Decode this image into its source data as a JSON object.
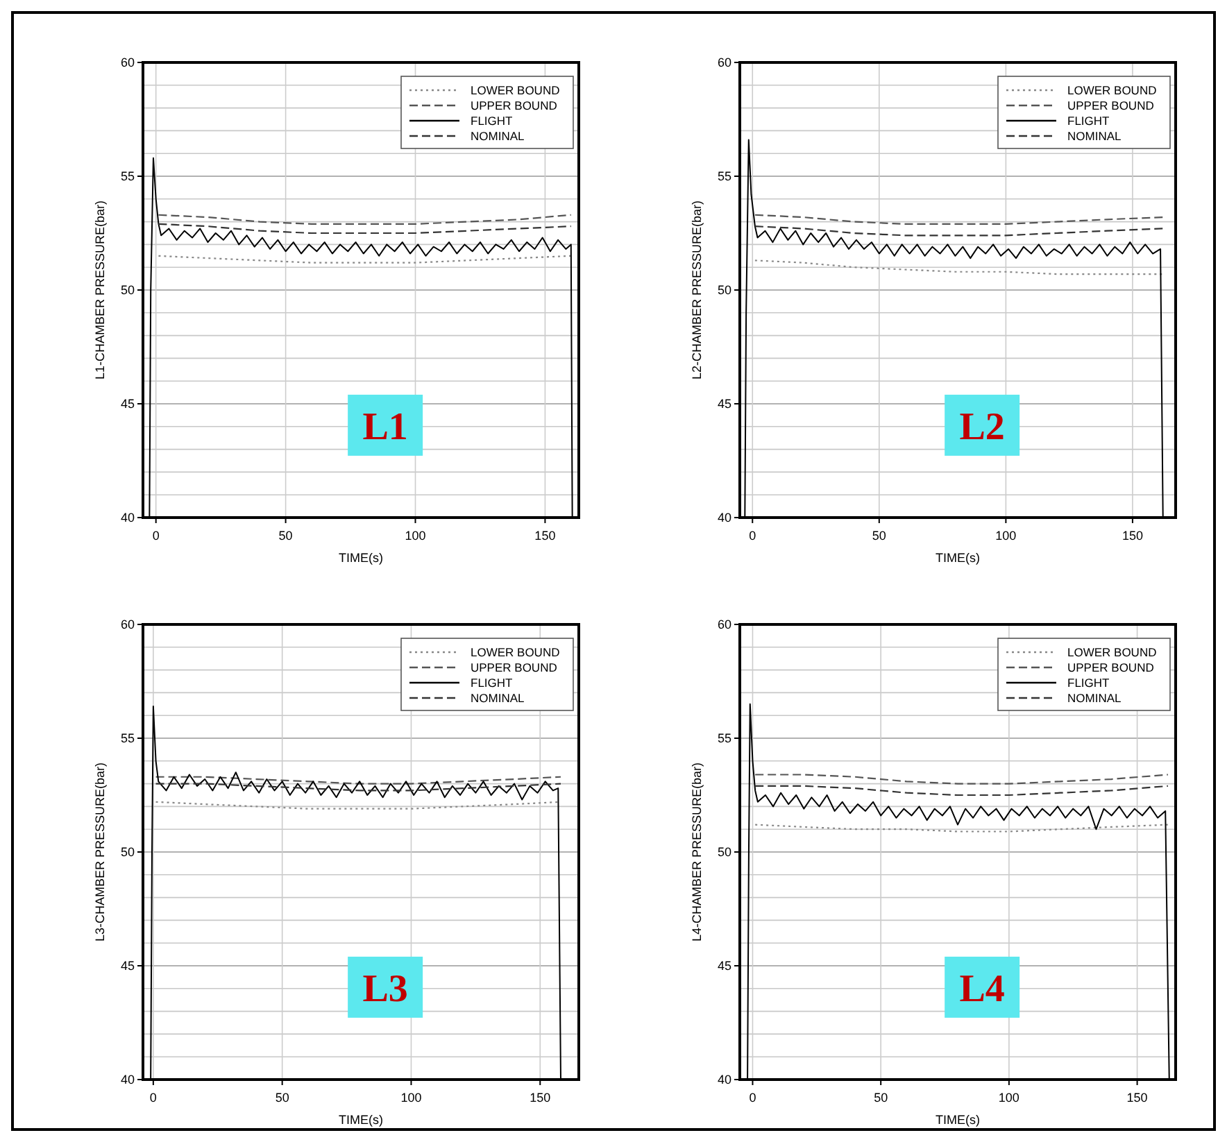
{
  "chart_data": [
    {
      "type": "line",
      "xlabel": "TIME(s)",
      "ylabel": "L1-CHAMBER PRESSURE(bar)",
      "annotations": [
        "L1"
      ],
      "xlim": [
        -5,
        163
      ],
      "xticks": [
        0,
        50,
        100,
        150
      ],
      "ylim": [
        40,
        60
      ],
      "yticks": [
        40,
        {
          "value": 41,
          "label": null
        },
        {
          "value": 42,
          "label": null
        },
        {
          "value": 43,
          "label": null
        },
        {
          "value": 44,
          "label": null
        },
        45,
        {
          "value": 46,
          "label": null
        },
        {
          "value": 47,
          "label": null
        },
        {
          "value": 48,
          "label": null
        },
        {
          "value": 49,
          "label": null
        },
        50,
        {
          "value": 51,
          "label": null
        },
        {
          "value": 52,
          "label": null
        },
        {
          "value": 53,
          "label": null
        },
        {
          "value": 54,
          "label": null
        },
        55,
        {
          "value": 56,
          "label": null
        },
        {
          "value": 57,
          "label": null
        },
        {
          "value": 58,
          "label": null
        },
        {
          "value": 59,
          "label": null
        },
        60
      ],
      "grid": true,
      "legend": "top right",
      "series": [
        {
          "name": "LOWER BOUND",
          "color": "#888888",
          "line_style": "dotted",
          "x": [
            1,
            20,
            40,
            60,
            80,
            100,
            120,
            140,
            160
          ],
          "values": [
            51.5,
            51.4,
            51.3,
            51.2,
            51.2,
            51.2,
            51.3,
            51.4,
            51.5
          ]
        },
        {
          "name": "UPPER BOUND",
          "color": "#555555",
          "line_style": "dashed",
          "x": [
            1,
            20,
            40,
            60,
            80,
            100,
            120,
            140,
            160
          ],
          "values": [
            53.3,
            53.2,
            53.0,
            52.9,
            52.9,
            52.9,
            53.0,
            53.1,
            53.3
          ]
        },
        {
          "name": "FLIGHT",
          "color": "#000000",
          "line_style": "solid",
          "x": [
            -2.5,
            -2,
            -1,
            0,
            1,
            2,
            5,
            8,
            11,
            14,
            17,
            20,
            23,
            26,
            29,
            32,
            35,
            38,
            41,
            44,
            47,
            50,
            53,
            56,
            59,
            62,
            65,
            68,
            71,
            74,
            77,
            80,
            83,
            86,
            89,
            92,
            95,
            98,
            101,
            104,
            107,
            110,
            113,
            116,
            119,
            122,
            125,
            128,
            131,
            134,
            137,
            140,
            143,
            146,
            149,
            152,
            155,
            158,
            160,
            160.5
          ],
          "values": [
            40,
            50,
            55.8,
            54,
            52.9,
            52.4,
            52.7,
            52.2,
            52.6,
            52.3,
            52.7,
            52.1,
            52.5,
            52.2,
            52.6,
            52.0,
            52.4,
            51.9,
            52.3,
            51.8,
            52.2,
            51.7,
            52.1,
            51.6,
            52.0,
            51.7,
            52.1,
            51.6,
            52.0,
            51.7,
            52.1,
            51.6,
            52.0,
            51.5,
            52.0,
            51.7,
            52.1,
            51.6,
            52.0,
            51.5,
            51.9,
            51.7,
            52.1,
            51.6,
            52.0,
            51.7,
            52.1,
            51.6,
            52.0,
            51.8,
            52.2,
            51.7,
            52.1,
            51.8,
            52.3,
            51.7,
            52.2,
            51.8,
            52.0,
            40
          ]
        },
        {
          "name": "NOMINAL",
          "color": "#333333",
          "line_style": "dashed",
          "x": [
            1,
            20,
            40,
            60,
            80,
            100,
            120,
            140,
            160
          ],
          "values": [
            52.9,
            52.8,
            52.6,
            52.5,
            52.5,
            52.5,
            52.6,
            52.7,
            52.8
          ]
        }
      ]
    },
    {
      "type": "line",
      "xlabel": "TIME(s)",
      "ylabel": "L2-CHAMBER PRESSURE(bar)",
      "annotations": [
        "L2"
      ],
      "xlim": [
        -5,
        167
      ],
      "xticks": [
        0,
        50,
        100,
        150
      ],
      "ylim": [
        40,
        60
      ],
      "yticks": [
        40,
        {
          "value": 41,
          "label": null
        },
        {
          "value": 42,
          "label": null
        },
        {
          "value": 43,
          "label": null
        },
        {
          "value": 44,
          "label": null
        },
        45,
        {
          "value": 46,
          "label": null
        },
        {
          "value": 47,
          "label": null
        },
        {
          "value": 48,
          "label": null
        },
        {
          "value": 49,
          "label": null
        },
        50,
        {
          "value": 51,
          "label": null
        },
        {
          "value": 52,
          "label": null
        },
        {
          "value": 53,
          "label": null
        },
        {
          "value": 54,
          "label": null
        },
        55,
        {
          "value": 56,
          "label": null
        },
        {
          "value": 57,
          "label": null
        },
        {
          "value": 58,
          "label": null
        },
        {
          "value": 59,
          "label": null
        },
        60
      ],
      "grid": true,
      "legend": "top right",
      "series": [
        {
          "name": "LOWER BOUND",
          "color": "#888888",
          "line_style": "dotted",
          "x": [
            1,
            20,
            40,
            60,
            80,
            100,
            120,
            140,
            162
          ],
          "values": [
            51.3,
            51.2,
            51.0,
            50.9,
            50.8,
            50.8,
            50.7,
            50.7,
            50.7
          ]
        },
        {
          "name": "UPPER BOUND",
          "color": "#555555",
          "line_style": "dashed",
          "x": [
            1,
            20,
            40,
            60,
            80,
            100,
            120,
            140,
            162
          ],
          "values": [
            53.3,
            53.2,
            53.0,
            52.9,
            52.9,
            52.9,
            53.0,
            53.1,
            53.2
          ]
        },
        {
          "name": "FLIGHT",
          "color": "#000000",
          "line_style": "solid",
          "x": [
            -3,
            -2.5,
            -1.5,
            -0.5,
            1,
            2,
            5,
            8,
            11,
            14,
            17,
            20,
            23,
            26,
            29,
            32,
            35,
            38,
            41,
            44,
            47,
            50,
            53,
            56,
            59,
            62,
            65,
            68,
            71,
            74,
            77,
            80,
            83,
            86,
            89,
            92,
            95,
            98,
            101,
            104,
            107,
            110,
            113,
            116,
            119,
            122,
            125,
            128,
            131,
            134,
            137,
            140,
            143,
            146,
            149,
            152,
            155,
            158,
            161,
            162
          ],
          "values": [
            40,
            49,
            56.6,
            54.2,
            52.8,
            52.3,
            52.6,
            52.1,
            52.7,
            52.2,
            52.6,
            52.0,
            52.5,
            52.1,
            52.5,
            51.9,
            52.3,
            51.8,
            52.2,
            51.8,
            52.1,
            51.6,
            52.0,
            51.5,
            52.0,
            51.6,
            52.0,
            51.5,
            51.9,
            51.6,
            52.0,
            51.5,
            51.9,
            51.4,
            51.9,
            51.6,
            52.0,
            51.5,
            51.8,
            51.4,
            51.9,
            51.6,
            52.0,
            51.5,
            51.8,
            51.6,
            52.0,
            51.5,
            51.9,
            51.6,
            52.0,
            51.5,
            51.9,
            51.6,
            52.1,
            51.6,
            52.0,
            51.6,
            51.8,
            40
          ]
        },
        {
          "name": "NOMINAL",
          "color": "#333333",
          "line_style": "dashed",
          "x": [
            1,
            20,
            40,
            60,
            80,
            100,
            120,
            140,
            162
          ],
          "values": [
            52.8,
            52.7,
            52.5,
            52.4,
            52.4,
            52.4,
            52.5,
            52.6,
            52.7
          ]
        }
      ]
    },
    {
      "type": "line",
      "xlabel": "TIME(s)",
      "ylabel": "L3-CHAMBER PRESSURE(bar)",
      "annotations": [
        "L3"
      ],
      "xlim": [
        -4,
        165
      ],
      "xticks": [
        0,
        50,
        100,
        150
      ],
      "ylim": [
        40,
        60
      ],
      "yticks": [
        40,
        {
          "value": 41,
          "label": null
        },
        {
          "value": 42,
          "label": null
        },
        {
          "value": 43,
          "label": null
        },
        {
          "value": 44,
          "label": null
        },
        45,
        {
          "value": 46,
          "label": null
        },
        {
          "value": 47,
          "label": null
        },
        {
          "value": 48,
          "label": null
        },
        {
          "value": 49,
          "label": null
        },
        50,
        {
          "value": 51,
          "label": null
        },
        {
          "value": 52,
          "label": null
        },
        {
          "value": 53,
          "label": null
        },
        {
          "value": 54,
          "label": null
        },
        55,
        {
          "value": 56,
          "label": null
        },
        {
          "value": 57,
          "label": null
        },
        {
          "value": 58,
          "label": null
        },
        {
          "value": 59,
          "label": null
        },
        60
      ],
      "grid": true,
      "legend": "top right",
      "series": [
        {
          "name": "LOWER BOUND",
          "color": "#888888",
          "line_style": "dotted",
          "x": [
            1,
            20,
            40,
            60,
            80,
            100,
            120,
            140,
            158
          ],
          "values": [
            52.2,
            52.1,
            52.0,
            51.9,
            51.9,
            51.9,
            52.0,
            52.1,
            52.2
          ]
        },
        {
          "name": "UPPER BOUND",
          "color": "#555555",
          "line_style": "dashed",
          "x": [
            1,
            20,
            40,
            60,
            80,
            100,
            120,
            140,
            158
          ],
          "values": [
            53.3,
            53.3,
            53.2,
            53.1,
            53.0,
            53.0,
            53.1,
            53.2,
            53.3
          ]
        },
        {
          "name": "FLIGHT",
          "color": "#000000",
          "line_style": "solid",
          "x": [
            -1,
            -0.5,
            0,
            1,
            2,
            5,
            8,
            11,
            14,
            17,
            20,
            23,
            26,
            29,
            32,
            35,
            38,
            41,
            44,
            47,
            50,
            53,
            56,
            59,
            62,
            65,
            68,
            71,
            74,
            77,
            80,
            83,
            86,
            89,
            92,
            95,
            98,
            101,
            104,
            107,
            110,
            113,
            116,
            119,
            122,
            125,
            128,
            131,
            134,
            137,
            140,
            143,
            146,
            149,
            152,
            155,
            157,
            158
          ],
          "values": [
            40,
            50,
            56.4,
            54,
            53.1,
            52.7,
            53.3,
            52.8,
            53.4,
            52.9,
            53.2,
            52.7,
            53.3,
            52.8,
            53.5,
            52.7,
            53.1,
            52.6,
            53.2,
            52.7,
            53.1,
            52.5,
            53.0,
            52.6,
            53.1,
            52.5,
            52.9,
            52.4,
            53.0,
            52.6,
            53.1,
            52.5,
            52.9,
            52.4,
            53.0,
            52.6,
            53.1,
            52.5,
            53.0,
            52.6,
            53.1,
            52.4,
            52.9,
            52.5,
            53.0,
            52.6,
            53.1,
            52.5,
            52.9,
            52.6,
            53.0,
            52.3,
            52.9,
            52.6,
            53.1,
            52.7,
            52.8,
            40
          ]
        },
        {
          "name": "NOMINAL",
          "color": "#333333",
          "line_style": "dashed",
          "x": [
            1,
            20,
            40,
            60,
            80,
            100,
            120,
            140,
            158
          ],
          "values": [
            53.0,
            53.0,
            52.9,
            52.8,
            52.7,
            52.7,
            52.8,
            52.9,
            53.0
          ]
        }
      ]
    },
    {
      "type": "line",
      "xlabel": "TIME(s)",
      "ylabel": "L4-CHAMBER PRESSURE(bar)",
      "annotations": [
        "L4"
      ],
      "xlim": [
        -5,
        165
      ],
      "xticks": [
        0,
        50,
        100,
        150
      ],
      "ylim": [
        40,
        60
      ],
      "yticks": [
        40,
        {
          "value": 41,
          "label": null
        },
        {
          "value": 42,
          "label": null
        },
        {
          "value": 43,
          "label": null
        },
        {
          "value": 44,
          "label": null
        },
        45,
        {
          "value": 46,
          "label": null
        },
        {
          "value": 47,
          "label": null
        },
        {
          "value": 48,
          "label": null
        },
        {
          "value": 49,
          "label": null
        },
        50,
        {
          "value": 51,
          "label": null
        },
        {
          "value": 52,
          "label": null
        },
        {
          "value": 53,
          "label": null
        },
        {
          "value": 54,
          "label": null
        },
        55,
        {
          "value": 56,
          "label": null
        },
        {
          "value": 57,
          "label": null
        },
        {
          "value": 58,
          "label": null
        },
        {
          "value": 59,
          "label": null
        },
        60
      ],
      "grid": true,
      "legend": "top right",
      "series": [
        {
          "name": "LOWER BOUND",
          "color": "#888888",
          "line_style": "dotted",
          "x": [
            1,
            20,
            40,
            60,
            80,
            100,
            120,
            140,
            162
          ],
          "values": [
            51.2,
            51.1,
            51.0,
            51.0,
            50.9,
            50.9,
            51.0,
            51.1,
            51.2
          ]
        },
        {
          "name": "UPPER BOUND",
          "color": "#555555",
          "line_style": "dashed",
          "x": [
            1,
            20,
            40,
            60,
            80,
            100,
            120,
            140,
            162
          ],
          "values": [
            53.4,
            53.4,
            53.3,
            53.1,
            53.0,
            53.0,
            53.1,
            53.2,
            53.4
          ]
        },
        {
          "name": "FLIGHT",
          "color": "#000000",
          "line_style": "solid",
          "x": [
            -2,
            -1.5,
            -1,
            0,
            1,
            2,
            5,
            8,
            11,
            14,
            17,
            20,
            23,
            26,
            29,
            32,
            35,
            38,
            41,
            44,
            47,
            50,
            53,
            56,
            59,
            62,
            65,
            68,
            71,
            74,
            77,
            80,
            83,
            86,
            89,
            92,
            95,
            98,
            101,
            104,
            107,
            110,
            113,
            116,
            119,
            122,
            125,
            128,
            131,
            134,
            137,
            140,
            143,
            146,
            149,
            152,
            155,
            158,
            161,
            162.5
          ],
          "values": [
            40,
            50,
            56.5,
            54,
            52.7,
            52.2,
            52.5,
            52.0,
            52.6,
            52.1,
            52.5,
            51.9,
            52.4,
            52.0,
            52.5,
            51.8,
            52.2,
            51.7,
            52.1,
            51.8,
            52.2,
            51.6,
            52.0,
            51.5,
            51.9,
            51.6,
            52.0,
            51.4,
            51.9,
            51.6,
            52.0,
            51.2,
            51.9,
            51.5,
            52.0,
            51.6,
            51.9,
            51.4,
            51.9,
            51.6,
            52.0,
            51.5,
            51.9,
            51.6,
            52.0,
            51.5,
            51.9,
            51.6,
            52.0,
            51.0,
            51.9,
            51.6,
            52.0,
            51.5,
            51.9,
            51.6,
            52.0,
            51.5,
            51.8,
            40
          ]
        },
        {
          "name": "NOMINAL",
          "color": "#333333",
          "line_style": "dashed",
          "x": [
            1,
            20,
            40,
            60,
            80,
            100,
            120,
            140,
            162
          ],
          "values": [
            52.9,
            52.9,
            52.8,
            52.6,
            52.5,
            52.5,
            52.6,
            52.7,
            52.9
          ]
        }
      ]
    }
  ]
}
